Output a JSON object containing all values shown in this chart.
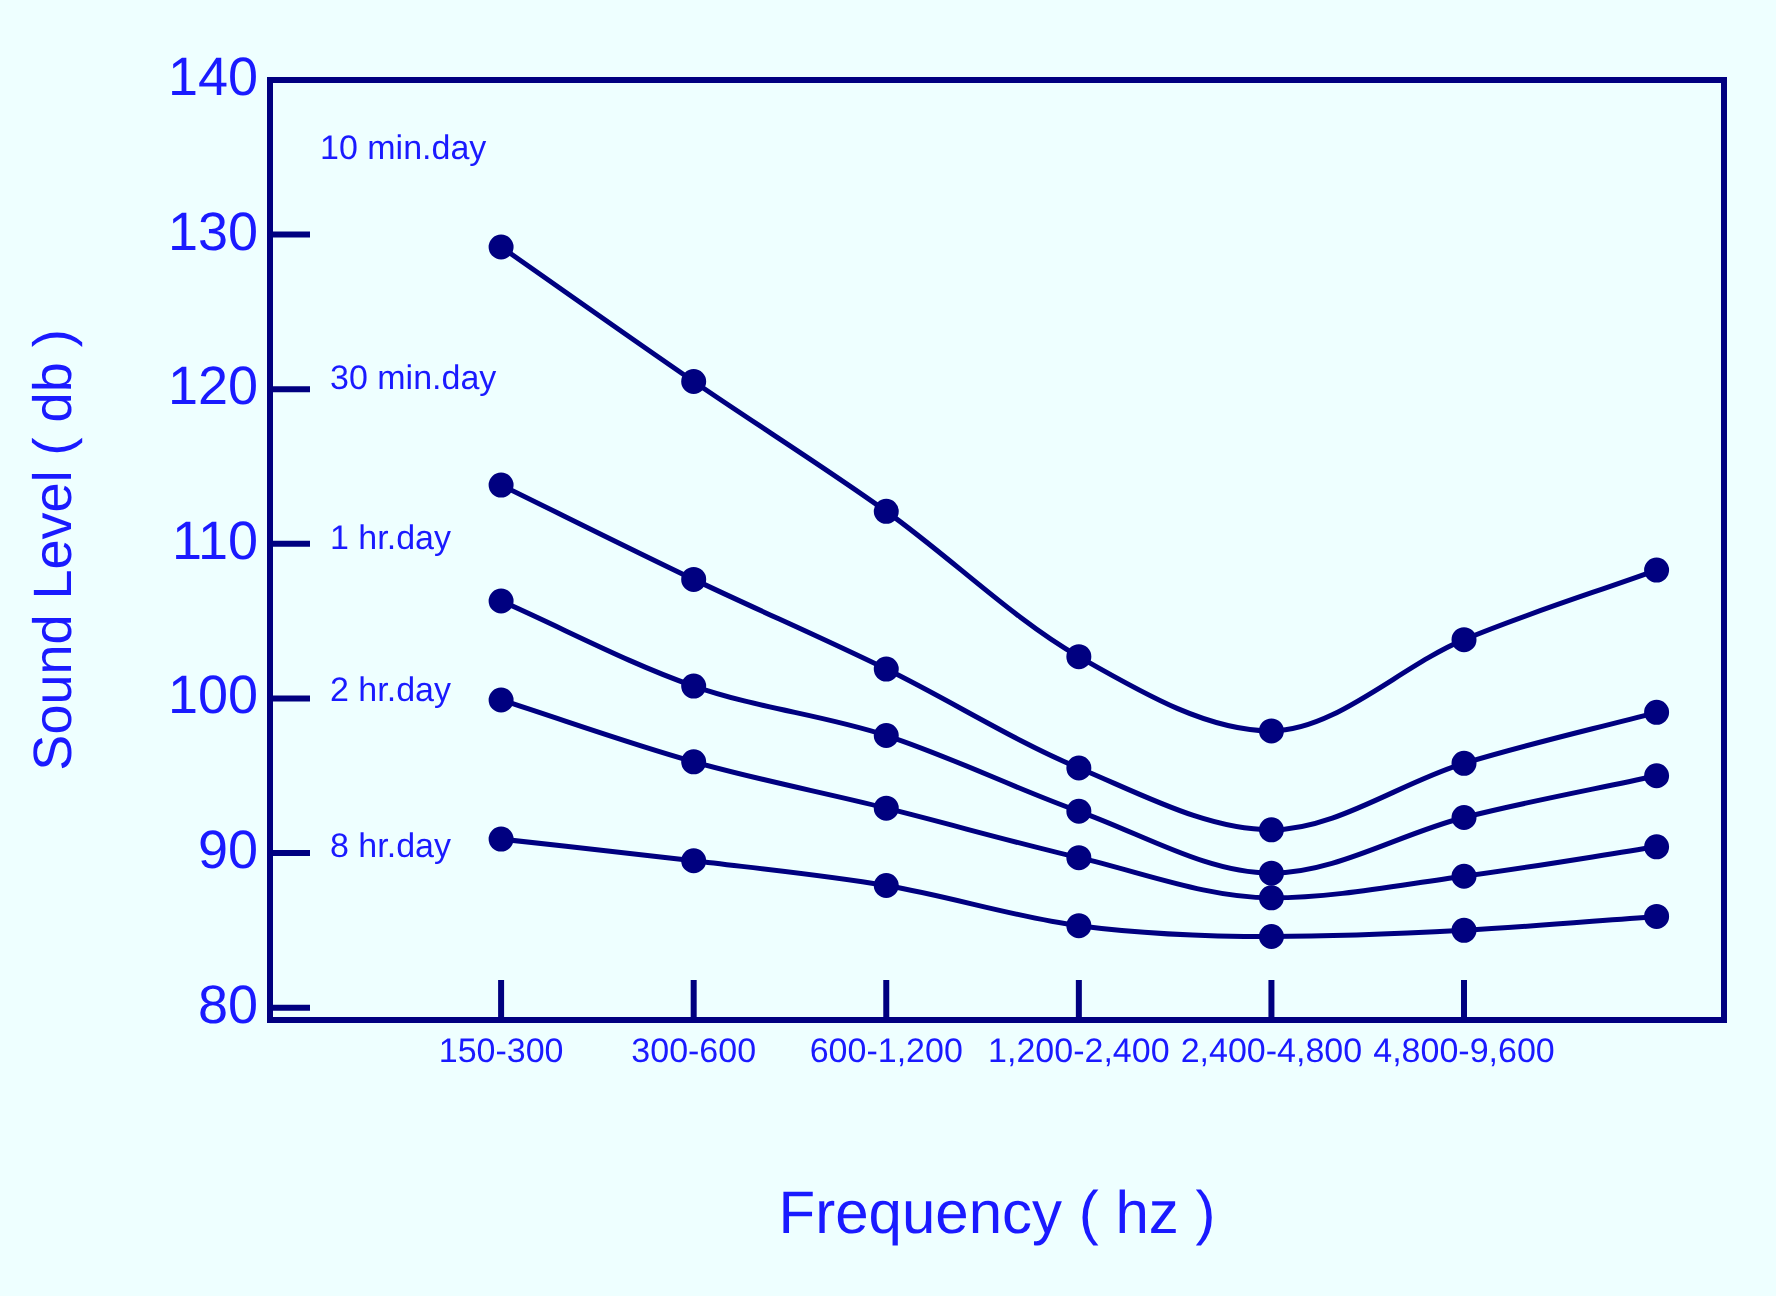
{
  "chart_data": {
    "type": "line",
    "xlabel": "Frequency ( hz )",
    "ylabel": "Sound Level ( db )",
    "categories": [
      "150-300",
      "300-600",
      "600-1,200",
      "1,200-2,400",
      "2,400-4,800",
      "4,800-9,600",
      null
    ],
    "ylim": [
      79.2,
      140
    ],
    "yticks": [
      80,
      90,
      100,
      110,
      120,
      130,
      140
    ],
    "grid": false,
    "legend": "left",
    "marker": "circle",
    "line_style": "solid",
    "series": [
      {
        "name": "10 min.day",
        "color": "#000080",
        "values": [
          129.2,
          120.5,
          112.1,
          102.7,
          97.9,
          103.8,
          108.3
        ]
      },
      {
        "name": "30 min.day",
        "color": "#000080",
        "values": [
          113.8,
          107.7,
          101.9,
          95.5,
          91.5,
          95.8,
          99.1
        ]
      },
      {
        "name": "1 hr.day",
        "color": "#000080",
        "values": [
          106.3,
          100.8,
          97.6,
          92.7,
          88.7,
          92.3,
          95.0
        ]
      },
      {
        "name": "2 hr.day",
        "color": "#000080",
        "values": [
          99.9,
          95.9,
          92.9,
          89.7,
          87.1,
          88.5,
          90.4
        ]
      },
      {
        "name": "8 hr.day",
        "color": "#000080",
        "values": [
          90.9,
          89.5,
          87.9,
          85.3,
          84.6,
          85.0,
          85.9
        ]
      }
    ]
  }
}
